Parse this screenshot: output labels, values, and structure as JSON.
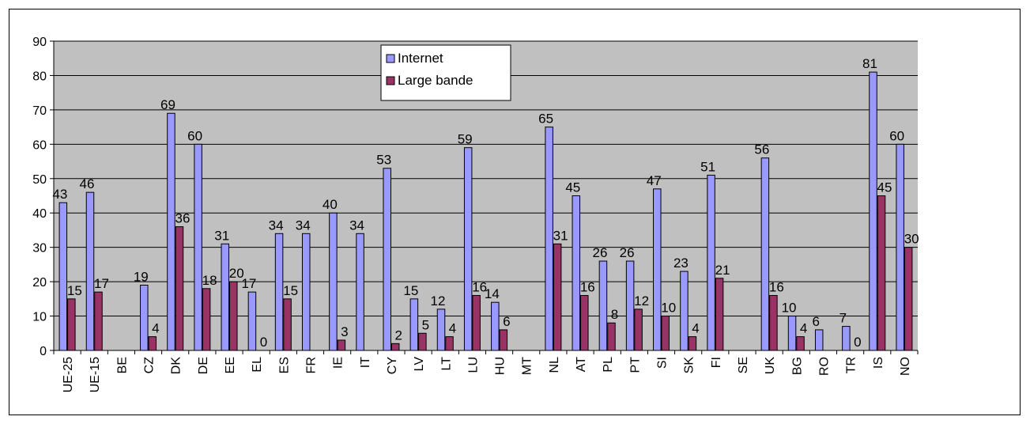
{
  "chart_data": {
    "type": "bar",
    "categories": [
      "UE-25",
      "UE-15",
      "BE",
      "CZ",
      "DK",
      "DE",
      "EE",
      "EL",
      "ES",
      "FR",
      "IE",
      "IT",
      "CY",
      "LV",
      "LT",
      "LU",
      "HU",
      "MT",
      "NL",
      "AT",
      "PL",
      "PT",
      "SI",
      "SK",
      "FI",
      "SE",
      "UK",
      "BG",
      "RO",
      "TR",
      "IS",
      "NO"
    ],
    "series": [
      {
        "name": "Internet",
        "color": "#9999ff",
        "values": [
          43,
          46,
          null,
          19,
          69,
          60,
          31,
          17,
          34,
          34,
          40,
          34,
          53,
          15,
          12,
          59,
          14,
          null,
          65,
          45,
          26,
          26,
          47,
          23,
          51,
          null,
          56,
          10,
          6,
          7,
          81,
          60
        ]
      },
      {
        "name": "Large bande",
        "color": "#993366",
        "values": [
          15,
          17,
          null,
          4,
          36,
          18,
          20,
          0,
          15,
          null,
          3,
          null,
          2,
          5,
          4,
          16,
          6,
          null,
          31,
          16,
          8,
          12,
          10,
          4,
          21,
          null,
          16,
          4,
          null,
          0,
          45,
          30
        ]
      }
    ],
    "ylim": [
      0,
      90
    ],
    "yticks": [
      "0",
      "10",
      "20",
      "30",
      "40",
      "50",
      "60",
      "70",
      "80",
      "90"
    ],
    "grid": true,
    "plot_background": "#c0c0c0",
    "legend": {
      "placement": "top-center"
    }
  }
}
